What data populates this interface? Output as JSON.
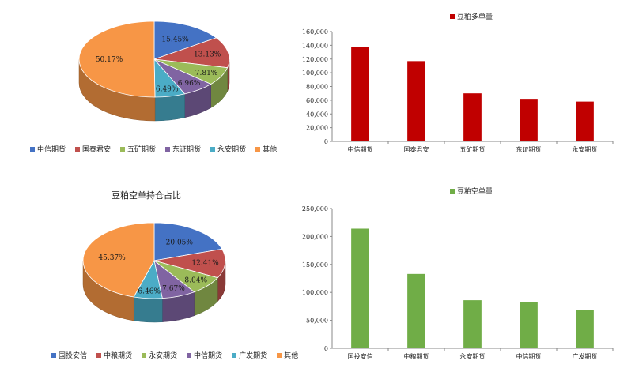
{
  "chart_data": [
    {
      "type": "pie",
      "title": "",
      "categories": [
        "中信期货",
        "国泰君安",
        "五矿期货",
        "东证期货",
        "永安期货",
        "其他"
      ],
      "values": [
        15.45,
        13.13,
        7.81,
        6.96,
        6.49,
        50.17
      ],
      "labels": [
        "15.45%",
        "13.13%",
        "7.81%",
        "6.96%",
        "6.49%",
        "50.17%"
      ],
      "colors": [
        "#4472C4",
        "#C0504D",
        "#9BBB59",
        "#8064A2",
        "#4BACC6",
        "#F79646"
      ],
      "legend": "bottom"
    },
    {
      "type": "bar",
      "title": "",
      "legend_label": "豆粕多单量",
      "categories": [
        "中信期货",
        "国泰君安",
        "五矿期货",
        "东证期货",
        "永安期货"
      ],
      "values": [
        138000,
        117000,
        70000,
        62000,
        58000
      ],
      "ylim": [
        0,
        160000
      ],
      "yticks": [
        "0",
        "20,000",
        "40,000",
        "60,000",
        "80,000",
        "100,000",
        "120,000",
        "140,000",
        "160,000"
      ],
      "color": "#C00000",
      "legend": "top"
    },
    {
      "type": "pie",
      "title": "豆粕空单持仓占比",
      "categories": [
        "国投安信",
        "中粮期货",
        "永安期货",
        "中信期货",
        "广发期货",
        "其他"
      ],
      "values": [
        20.05,
        12.41,
        8.04,
        7.67,
        6.46,
        45.37
      ],
      "labels": [
        "20.05%",
        "12.41%",
        "8.04%",
        "7.67%",
        "6.46%",
        "45.37%"
      ],
      "colors": [
        "#4472C4",
        "#C0504D",
        "#9BBB59",
        "#8064A2",
        "#4BACC6",
        "#F79646"
      ],
      "legend": "bottom"
    },
    {
      "type": "bar",
      "title": "",
      "legend_label": "豆粕空单量",
      "categories": [
        "国投安信",
        "中粮期货",
        "永安期货",
        "中信期货",
        "广发期货"
      ],
      "values": [
        214000,
        133000,
        86000,
        82000,
        69000
      ],
      "ylim": [
        0,
        250000
      ],
      "yticks": [
        "0",
        "50,000",
        "100,000",
        "150,000",
        "200,000",
        "250,000"
      ],
      "color": "#70AD47",
      "legend": "top"
    }
  ]
}
